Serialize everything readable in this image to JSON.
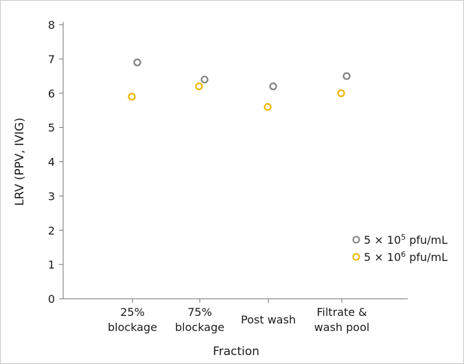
{
  "chart_data": {
    "type": "scatter",
    "xlabel": "Fraction",
    "ylabel": "LRV (PPV, IVIG)",
    "ylim": [
      0,
      8
    ],
    "yticks": [
      0,
      1,
      2,
      3,
      4,
      5,
      6,
      7,
      8
    ],
    "categories": [
      [
        "25%",
        "blockage"
      ],
      [
        "75%",
        "blockage"
      ],
      [
        "Post wash"
      ],
      [
        "Filtrate &",
        "wash pool"
      ]
    ],
    "series": [
      {
        "name": "5 × 10^5 pfu/mL",
        "legend_base": "5 × 10",
        "legend_exp": "5",
        "legend_unit": " pfu/mL",
        "color": "#808080",
        "values": [
          6.9,
          6.4,
          6.2,
          6.5
        ]
      },
      {
        "name": "5 × 10^6 pfu/mL",
        "legend_base": "5 × 10",
        "legend_exp": "6",
        "legend_unit": " pfu/mL",
        "color": "#f0b400",
        "values": [
          5.9,
          6.2,
          5.6,
          6.0
        ]
      }
    ],
    "legend_position": "bottom-right",
    "grid": false
  }
}
